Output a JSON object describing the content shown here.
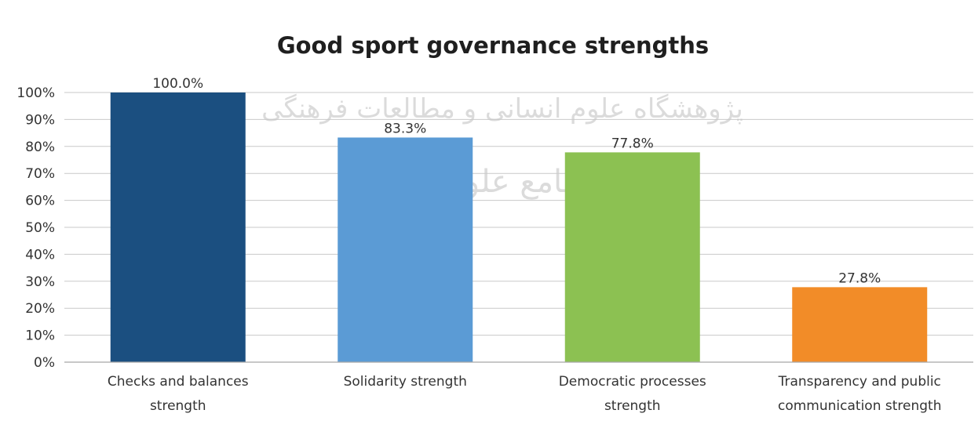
{
  "watermark": {
    "line1": "پژوهشگاه علوم انسانی و مطالعات فرهنگی",
    "line2": "پرتال جامع علوم انسانی"
  },
  "chart_data": {
    "type": "bar",
    "title": "Good sport governance strengths",
    "xlabel": "",
    "ylabel": "",
    "ylim": [
      0,
      100
    ],
    "y_ticks": [
      0,
      10,
      20,
      30,
      40,
      50,
      60,
      70,
      80,
      90,
      100
    ],
    "y_tick_labels": [
      "0%",
      "10%",
      "20%",
      "30%",
      "40%",
      "50%",
      "60%",
      "70%",
      "80%",
      "90%",
      "100%"
    ],
    "grid": true,
    "legend": "none",
    "categories": [
      [
        "Checks and balances",
        "strength"
      ],
      [
        "Solidarity strength"
      ],
      [
        "Democratic processes",
        "strength"
      ],
      [
        "Transparency and public",
        "communication strength"
      ]
    ],
    "values": [
      100.0,
      83.3,
      77.8,
      27.8
    ],
    "data_labels": [
      "100.0%",
      "83.3%",
      "77.8%",
      "27.8%"
    ],
    "colors": [
      "#1b4f80",
      "#5b9bd5",
      "#8cc152",
      "#f28c28"
    ]
  }
}
